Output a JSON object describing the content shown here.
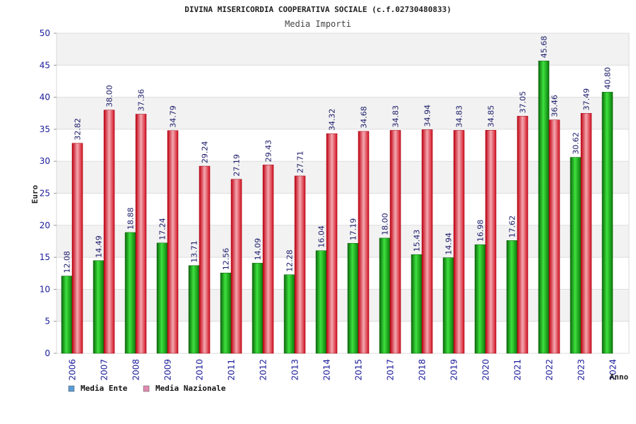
{
  "header": {
    "title": "DIVINA MISERICORDIA COOPERATIVA SOCIALE (c.f.02730480833)",
    "subtitle": "Media Importi"
  },
  "chart_data": {
    "type": "bar",
    "ylabel": "Euro",
    "xlabel": "Anno",
    "ylim": [
      0,
      50
    ],
    "yticks": [
      0,
      5,
      10,
      15,
      20,
      25,
      30,
      35,
      40,
      45,
      50
    ],
    "grid": true,
    "legend_position": "bottom-left",
    "categories": [
      "2006",
      "2007",
      "2008",
      "2009",
      "2010",
      "2011",
      "2012",
      "2013",
      "2014",
      "2015",
      "2017",
      "2018",
      "2019",
      "2020",
      "2021",
      "2022",
      "2023",
      "2024"
    ],
    "series": [
      {
        "name": "Media Ente",
        "color": "#1a9e1a",
        "legend_color": "#5b9bd5",
        "values": [
          12.08,
          14.49,
          18.88,
          17.24,
          13.71,
          12.56,
          14.09,
          12.28,
          16.04,
          17.19,
          18.0,
          15.43,
          14.94,
          16.98,
          17.62,
          45.68,
          30.62,
          40.8
        ]
      },
      {
        "name": "Media Nazionale",
        "color": "#e8202a",
        "legend_color": "#e08ab0",
        "values": [
          32.82,
          38.0,
          37.36,
          34.79,
          29.24,
          27.19,
          29.43,
          27.71,
          34.32,
          34.68,
          34.83,
          34.94,
          34.83,
          34.85,
          37.05,
          36.46,
          37.49,
          null
        ]
      }
    ]
  }
}
